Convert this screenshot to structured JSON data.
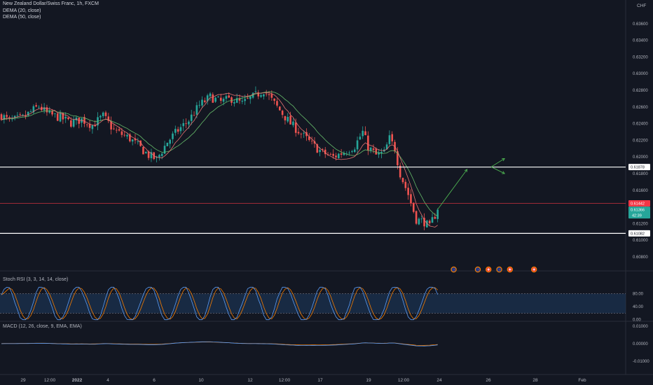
{
  "header": {
    "symbol_line": "New Zealand Dollar/Swiss Franc, 1h, FXCM",
    "indicator_1": "DEMA (20, close)",
    "indicator_2": "DEMA (50, close)",
    "currency": "CHF"
  },
  "stoch_panel": {
    "label": "Stoch RSI (3, 3, 14, 14, close)"
  },
  "macd_panel": {
    "label": "MACD (12, 26, close, 9, EMA, EMA)"
  },
  "colors": {
    "background": "#131722",
    "up_candle": "#26a69a",
    "down_candle": "#ef5350",
    "dema20": "#e57373",
    "dema50": "#66bb6a",
    "stoch_k": "#5b9cf6",
    "stoch_d": "#f57c00",
    "stoch_band": "#1e3a5f",
    "level_line": "#ffffff",
    "price_line": "#f23645",
    "projection": "#4caf50"
  },
  "chart_data": [
    {
      "type": "candlestick",
      "title": "New Zealand Dollar/Swiss Franc, 1h, FXCM",
      "ylabel": "CHF",
      "ylim": [
        0.608,
        0.6385
      ],
      "y_ticks": [
        "0.63600",
        "0.63400",
        "0.63200",
        "0.63000",
        "0.62800",
        "0.62600",
        "0.62400",
        "0.62200",
        "0.62000",
        "0.61800",
        "0.61600",
        "0.61400",
        "0.61200",
        "0.61000",
        "0.60800"
      ],
      "x_ticks": [
        "29",
        "12:00",
        "2022",
        "4",
        "6",
        "10",
        "12",
        "12:00",
        "17",
        "19",
        "12:00",
        "24",
        "26",
        "28",
        "Feb"
      ],
      "price_path": [
        [
          0,
          0.625
        ],
        [
          3,
          0.6243
        ],
        [
          8,
          0.6247
        ],
        [
          14,
          0.6261
        ],
        [
          17,
          0.6252
        ],
        [
          22,
          0.6247
        ],
        [
          26,
          0.6241
        ],
        [
          30,
          0.6245
        ],
        [
          34,
          0.6238
        ],
        [
          38,
          0.6249
        ],
        [
          42,
          0.6232
        ],
        [
          48,
          0.6222
        ],
        [
          55,
          0.6202
        ],
        [
          58,
          0.6197
        ],
        [
          62,
          0.6218
        ],
        [
          66,
          0.6232
        ],
        [
          70,
          0.6244
        ],
        [
          74,
          0.6262
        ],
        [
          78,
          0.6272
        ],
        [
          82,
          0.6266
        ],
        [
          86,
          0.627
        ],
        [
          90,
          0.6264
        ],
        [
          94,
          0.6272
        ],
        [
          98,
          0.628
        ],
        [
          103,
          0.626
        ],
        [
          108,
          0.624
        ],
        [
          112,
          0.6228
        ],
        [
          116,
          0.6215
        ],
        [
          120,
          0.6205
        ],
        [
          124,
          0.62
        ],
        [
          128,
          0.6206
        ],
        [
          132,
          0.6213
        ],
        [
          135,
          0.623
        ],
        [
          137,
          0.6212
        ],
        [
          140,
          0.6202
        ],
        [
          143,
          0.6205
        ],
        [
          145,
          0.6222
        ],
        [
          147,
          0.621
        ],
        [
          149,
          0.618
        ],
        [
          152,
          0.6155
        ],
        [
          155,
          0.6125
        ],
        [
          158,
          0.6122
        ],
        [
          160,
          0.6115
        ],
        [
          161,
          0.6124
        ],
        [
          163,
          0.6136
        ]
      ],
      "horizontal_levels": [
        {
          "price": 0.61878,
          "label": "0.61878",
          "kind": "support"
        },
        {
          "price": 0.61082,
          "label": "0.61082",
          "kind": "support"
        },
        {
          "price": 0.61442,
          "label": "0.61442",
          "kind": "price"
        }
      ],
      "last_price": {
        "price": 0.61366,
        "label": "0.61366",
        "countdown": "42:39"
      },
      "projection_arrows": [
        [
          [
            163,
            0.6137
          ],
          [
            174,
            0.6185
          ]
        ],
        [
          [
            183,
            0.6188
          ],
          [
            188,
            0.6198
          ]
        ],
        [
          [
            183,
            0.6188
          ],
          [
            188,
            0.618
          ]
        ]
      ],
      "event_icons": [
        {
          "bar": 169,
          "kind": "nz-flag"
        },
        {
          "bar": 178,
          "kind": "nz-flag"
        },
        {
          "bar": 182,
          "kind": "ch-flag"
        },
        {
          "bar": 186,
          "kind": "nz-flag"
        },
        {
          "bar": 190,
          "kind": "ch-flag"
        },
        {
          "bar": 199,
          "kind": "ch-flag"
        }
      ],
      "series": [
        {
          "name": "DEMA (20, close)"
        },
        {
          "name": "DEMA (50, close)"
        }
      ]
    },
    {
      "type": "line",
      "title": "Stoch RSI (3, 3, 14, 14, close)",
      "ylim": [
        -5,
        105
      ],
      "y_ticks": [
        "80.00",
        "40.00",
        "0.00"
      ],
      "bands": [
        20,
        80
      ]
    },
    {
      "type": "line",
      "title": "MACD (12, 26, close, 9, EMA, EMA)",
      "ylim": [
        -0.015,
        0.015
      ],
      "y_ticks": [
        "0.01000",
        "0.00000",
        "-0.01000"
      ]
    }
  ]
}
